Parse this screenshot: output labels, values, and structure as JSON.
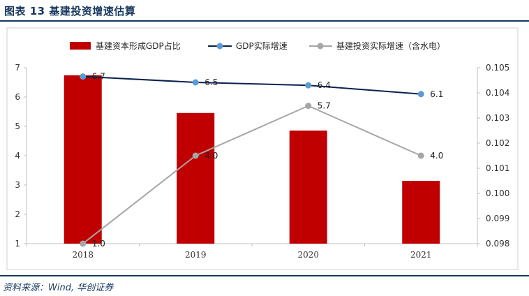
{
  "figure": {
    "title": "图表 13  基建投资增速估算",
    "source": "资料来源：Wind, 华创证券"
  },
  "colors": {
    "bar": "#c00000",
    "gdp_line": "#0a2150",
    "gdp_marker": "#5b9bd5",
    "infra_line": "#a6a6a6",
    "title": "#17375e"
  },
  "chart_data": {
    "type": "bar",
    "categories": [
      "2018",
      "2019",
      "2020",
      "2021"
    ],
    "series": [
      {
        "name": "基建资本形成GDP占比",
        "type": "bar",
        "axis": "right",
        "values": [
          0.1047,
          0.1032,
          0.1025,
          0.1005
        ]
      },
      {
        "name": "GDP实际增速",
        "type": "line",
        "axis": "left",
        "values": [
          6.7,
          6.5,
          6.4,
          6.1
        ],
        "labels": [
          "6.7",
          "6.5",
          "6.4",
          "6.1"
        ]
      },
      {
        "name": "基建投资实际增速（含水电）",
        "type": "line",
        "axis": "left",
        "values": [
          1.0,
          4.0,
          5.7,
          4.0
        ],
        "labels": [
          "1.0",
          "4.0",
          "5.7",
          "4.0"
        ]
      }
    ],
    "y_left": {
      "ylim": [
        1,
        7
      ],
      "ticks": [
        "1",
        "2",
        "3",
        "4",
        "5",
        "6",
        "7"
      ]
    },
    "y_right": {
      "ylim": [
        0.098,
        0.105
      ],
      "ticks": [
        "0.098",
        "0.099",
        "0.100",
        "0.101",
        "0.102",
        "0.103",
        "0.104",
        "0.105"
      ]
    },
    "legend": "top-center",
    "grid": false
  }
}
